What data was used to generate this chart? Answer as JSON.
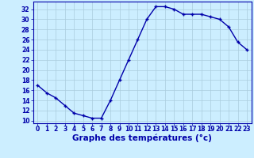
{
  "x": [
    0,
    1,
    2,
    3,
    4,
    5,
    6,
    7,
    8,
    9,
    10,
    11,
    12,
    13,
    14,
    15,
    16,
    17,
    18,
    19,
    20,
    21,
    22,
    23
  ],
  "y": [
    17,
    15.5,
    14.5,
    13,
    11.5,
    11,
    10.5,
    10.5,
    14,
    18,
    22,
    26,
    30,
    32.5,
    32.5,
    32,
    31,
    31,
    31,
    30.5,
    30,
    28.5,
    25.5,
    24
  ],
  "line_color": "#0000aa",
  "marker": "+",
  "marker_size": 3.5,
  "marker_lw": 1.0,
  "bg_color": "#cceeff",
  "grid_color": "#aaccdd",
  "xlabel": "Graphe des températures (°c)",
  "xlabel_fontsize": 7.5,
  "xlim": [
    -0.5,
    23.5
  ],
  "ylim": [
    9.5,
    33.5
  ],
  "yticks": [
    10,
    12,
    14,
    16,
    18,
    20,
    22,
    24,
    26,
    28,
    30,
    32
  ],
  "xticks": [
    0,
    1,
    2,
    3,
    4,
    5,
    6,
    7,
    8,
    9,
    10,
    11,
    12,
    13,
    14,
    15,
    16,
    17,
    18,
    19,
    20,
    21,
    22,
    23
  ],
  "tick_color": "#0000aa",
  "tick_fontsize": 5.5,
  "spine_color": "#0000aa",
  "linewidth": 1.0
}
